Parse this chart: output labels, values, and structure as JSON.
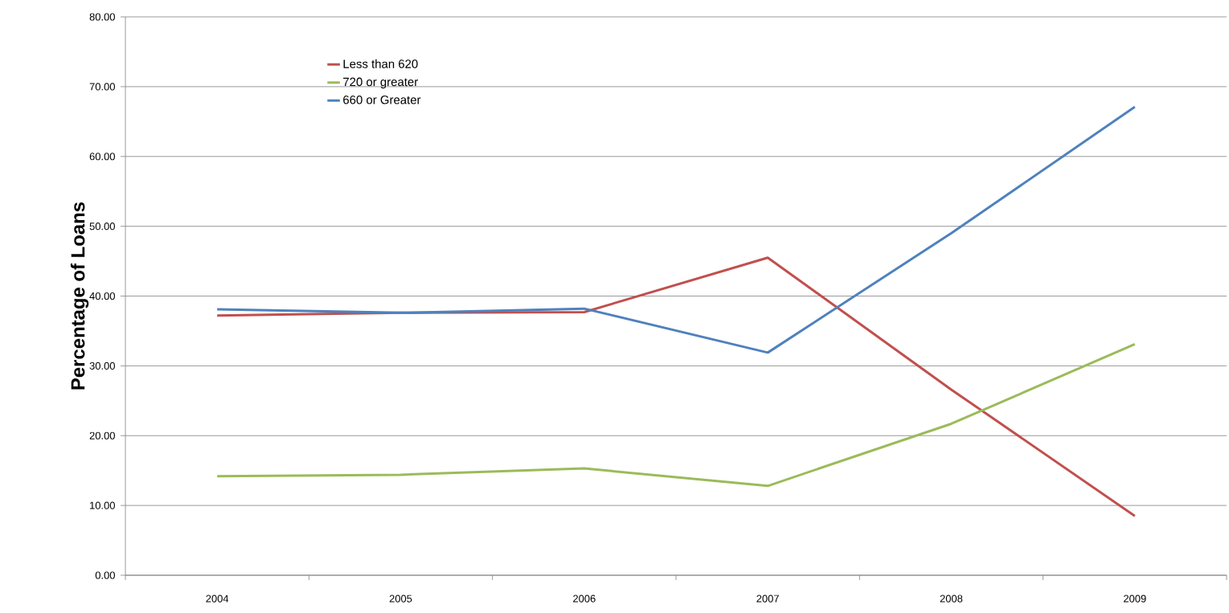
{
  "chart_data": {
    "type": "line",
    "ylabel": "Percentage of  Loans",
    "categories": [
      "2004",
      "2005",
      "2006",
      "2007",
      "2008",
      "2009"
    ],
    "series": [
      {
        "name": "Less than 620",
        "color": "#c0504d",
        "values": [
          37.2,
          37.6,
          37.7,
          45.5,
          26.6,
          8.5
        ]
      },
      {
        "name": "720 or greater",
        "color": "#9bbb59",
        "values": [
          14.2,
          14.4,
          15.3,
          12.8,
          21.7,
          33.1
        ]
      },
      {
        "name": "660 or Greater",
        "color": "#4f81bd",
        "values": [
          38.1,
          37.6,
          38.2,
          31.9,
          49.0,
          67.1
        ]
      }
    ],
    "ylim": [
      0,
      80
    ],
    "yticks": [
      {
        "value": 0,
        "label": "0.00"
      },
      {
        "value": 10,
        "label": "10.00"
      },
      {
        "value": 20,
        "label": "20.00"
      },
      {
        "value": 30,
        "label": "30.00"
      },
      {
        "value": 40,
        "label": "40.00"
      },
      {
        "value": 50,
        "label": "50.00"
      },
      {
        "value": 60,
        "label": "60.00"
      },
      {
        "value": 70,
        "label": "70.00"
      },
      {
        "value": 80,
        "label": "80.00"
      }
    ],
    "grid": "y",
    "legend": "top left",
    "line_style": "solid"
  }
}
